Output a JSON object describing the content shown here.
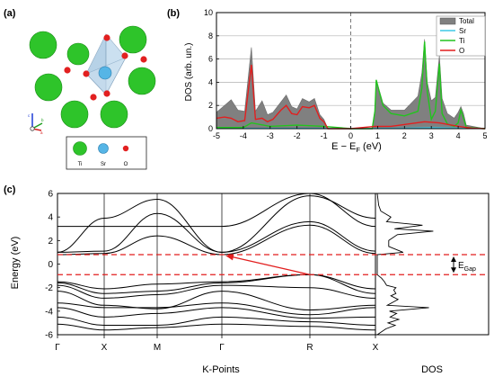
{
  "panels": {
    "a": {
      "label": "(a)",
      "legend": [
        "Ti",
        "Sr",
        "O"
      ],
      "axis_letters": {
        "c": "c",
        "b": "b",
        "a": "a"
      }
    },
    "b": {
      "label": "(b)",
      "ylabel": "DOS (arb. un.)",
      "xlabel_main": "E − E",
      "xlabel_sub": "F",
      "xlabel_tail": " (eV)",
      "xticks": [
        "-5",
        "-4",
        "-3",
        "-2",
        "-1",
        "0",
        "1",
        "2",
        "3",
        "4",
        "5"
      ],
      "yticks": [
        "0",
        "2",
        "4",
        "6",
        "8",
        "10"
      ],
      "legend": [
        "Total",
        "Sr",
        "Ti",
        "O"
      ]
    },
    "c": {
      "label": "(c)",
      "ylabel": "Energy (eV)",
      "xlabel": "K-Points",
      "dos_label": "DOS",
      "kpoints": [
        "Γ",
        "X",
        "M",
        "Γ",
        "R",
        "X"
      ],
      "yticks": [
        "6",
        "4",
        "2",
        "0",
        "-2",
        "-4",
        "-6"
      ],
      "gap_label_main": "E",
      "gap_label_sub": "Gap"
    }
  },
  "colors": {
    "total": "#808080",
    "sr": "#3ec8e6",
    "ti": "#22c41e",
    "o": "#e21f1f",
    "gap_line": "#e21f1f",
    "band": "#000000"
  },
  "chart_data": [
    {
      "type": "area",
      "panel": "b",
      "xlim": [
        -5,
        5
      ],
      "ylim": [
        0,
        10
      ],
      "grid": true,
      "legend_position": "top-right",
      "fermi_level": 0,
      "series": [
        {
          "name": "Total",
          "x": [
            -5,
            -4.7,
            -4.45,
            -4.2,
            -3.95,
            -3.7,
            -3.55,
            -3.3,
            -3.1,
            -2.9,
            -2.6,
            -2.4,
            -2.2,
            -2.0,
            -1.8,
            -1.55,
            -1.35,
            -1.15,
            -1.0,
            -0.85,
            0.8,
            0.9,
            0.95,
            1.05,
            1.2,
            1.5,
            2.0,
            2.5,
            2.65,
            2.75,
            2.85,
            3.0,
            3.15,
            3.3,
            3.4,
            3.6,
            3.85,
            4.0,
            4.1,
            4.2,
            4.3,
            5
          ],
          "values": [
            1.4,
            2.0,
            2.5,
            1.6,
            1.5,
            7.0,
            1.5,
            2.4,
            1.2,
            1.4,
            2.3,
            2.9,
            1.9,
            1.7,
            2.6,
            2.3,
            2.6,
            1.2,
            0.8,
            0,
            0,
            1.6,
            4.2,
            3.4,
            2.2,
            1.6,
            1.6,
            2.8,
            4.8,
            7.7,
            4.0,
            2.4,
            2.7,
            6.3,
            2.6,
            1.3,
            0.9,
            1.4,
            1.9,
            1.3,
            0.3,
            0
          ]
        },
        {
          "name": "Sr",
          "x": [
            -5,
            -4,
            -3,
            -1,
            0,
            1,
            2,
            3,
            4,
            5
          ],
          "values": [
            0.02,
            0.02,
            0.02,
            0.02,
            0,
            0.02,
            0.05,
            0.08,
            0.05,
            0.02
          ]
        },
        {
          "name": "Ti",
          "x": [
            -5,
            -4,
            -3.7,
            -3,
            -2,
            -1,
            0,
            0.8,
            0.9,
            0.95,
            1.05,
            1.2,
            1.5,
            2.0,
            2.5,
            2.65,
            2.75,
            2.85,
            3.0,
            3.15,
            3.3,
            3.4,
            3.6,
            3.85,
            4.0,
            4.1,
            4.2,
            4.3,
            5
          ],
          "values": [
            0.1,
            0.1,
            0.5,
            0.2,
            0.3,
            0.2,
            0,
            0,
            1.5,
            4.2,
            3.3,
            2.0,
            1.3,
            1.1,
            1.5,
            3.5,
            7.5,
            3.2,
            0.8,
            1.5,
            5.6,
            1.3,
            0.4,
            0.2,
            0.5,
            1.6,
            0.9,
            0.1,
            0
          ]
        },
        {
          "name": "O",
          "x": [
            -5,
            -4.7,
            -4.45,
            -4.2,
            -3.95,
            -3.7,
            -3.55,
            -3.3,
            -3.1,
            -2.9,
            -2.6,
            -2.4,
            -2.2,
            -2.0,
            -1.8,
            -1.55,
            -1.35,
            -1.15,
            -1.0,
            -0.85,
            0,
            0.9,
            1.5,
            2.75,
            3.3,
            4.0,
            4.5,
            5
          ],
          "values": [
            0.9,
            1.0,
            0.9,
            0.6,
            0.7,
            5.5,
            0.8,
            0.9,
            0.6,
            0.8,
            1.6,
            2.0,
            1.3,
            1.2,
            1.9,
            1.8,
            2.0,
            0.9,
            0.6,
            0,
            0,
            0.2,
            0.2,
            0.6,
            0.5,
            0.2,
            0.05,
            0
          ]
        }
      ]
    },
    {
      "type": "line",
      "panel": "c",
      "ylim": [
        -6,
        6
      ],
      "categories": [
        "Γ",
        "X",
        "M",
        "Γ",
        "R",
        "X"
      ],
      "gap_lines_eV": [
        0.8,
        -0.9
      ],
      "series": [
        {
          "values": [
            3.2,
            3.2,
            3.2,
            3.2,
            6.0,
            3.2
          ]
        },
        {
          "values": [
            1.0,
            3.9,
            5.5,
            1.0,
            5.8,
            3.9
          ]
        },
        {
          "values": [
            1.0,
            1.1,
            4.3,
            1.0,
            3.6,
            1.1
          ]
        },
        {
          "values": [
            0.8,
            0.9,
            2.4,
            0.8,
            3.3,
            0.9
          ]
        },
        {
          "values": [
            -1.5,
            -2.1,
            -1.7,
            -1.5,
            -0.9,
            -2.1
          ]
        },
        {
          "values": [
            -1.6,
            -2.5,
            -2.3,
            -1.6,
            -0.9,
            -2.5
          ]
        },
        {
          "values": [
            -1.8,
            -2.9,
            -2.6,
            -1.8,
            -2.0,
            -2.9
          ]
        },
        {
          "values": [
            -2.3,
            -3.5,
            -3.8,
            -2.3,
            -3.9,
            -3.5
          ]
        },
        {
          "values": [
            -3.3,
            -3.7,
            -3.7,
            -3.3,
            -4.3,
            -3.7
          ]
        },
        {
          "values": [
            -3.7,
            -4.5,
            -4.2,
            -3.7,
            -4.6,
            -4.5
          ]
        },
        {
          "values": [
            -4.5,
            -5.2,
            -5.2,
            -4.5,
            -4.9,
            -5.2
          ]
        },
        {
          "values": [
            -5.1,
            -5.6,
            -5.4,
            -5.1,
            -5.3,
            -5.6
          ]
        }
      ],
      "dos_side": {
        "energy": [
          -6,
          -5.5,
          -5.2,
          -5.0,
          -4.7,
          -4.5,
          -4.2,
          -4.0,
          -3.7,
          -3.5,
          -3.2,
          -3.0,
          -2.7,
          -2.5,
          -2.2,
          -2.0,
          -1.8,
          -1.5,
          -1.2,
          -0.9,
          -0.5,
          0,
          0.5,
          0.8,
          1.0,
          1.5,
          2.0,
          2.5,
          2.8,
          3.0,
          3.3,
          3.6,
          4.0,
          4.5,
          5,
          6
        ],
        "values": [
          0,
          1.2,
          2.5,
          1.5,
          3.0,
          1.8,
          2.7,
          1.7,
          7.2,
          1.4,
          2.3,
          2.9,
          1.9,
          2.6,
          2.3,
          2.6,
          1.3,
          1.0,
          0.6,
          0,
          0,
          0,
          0,
          0,
          3.6,
          1.6,
          1.6,
          2.8,
          7.8,
          2.4,
          6.3,
          1.3,
          1.9,
          0.5,
          0.2,
          0
        ]
      }
    }
  ]
}
